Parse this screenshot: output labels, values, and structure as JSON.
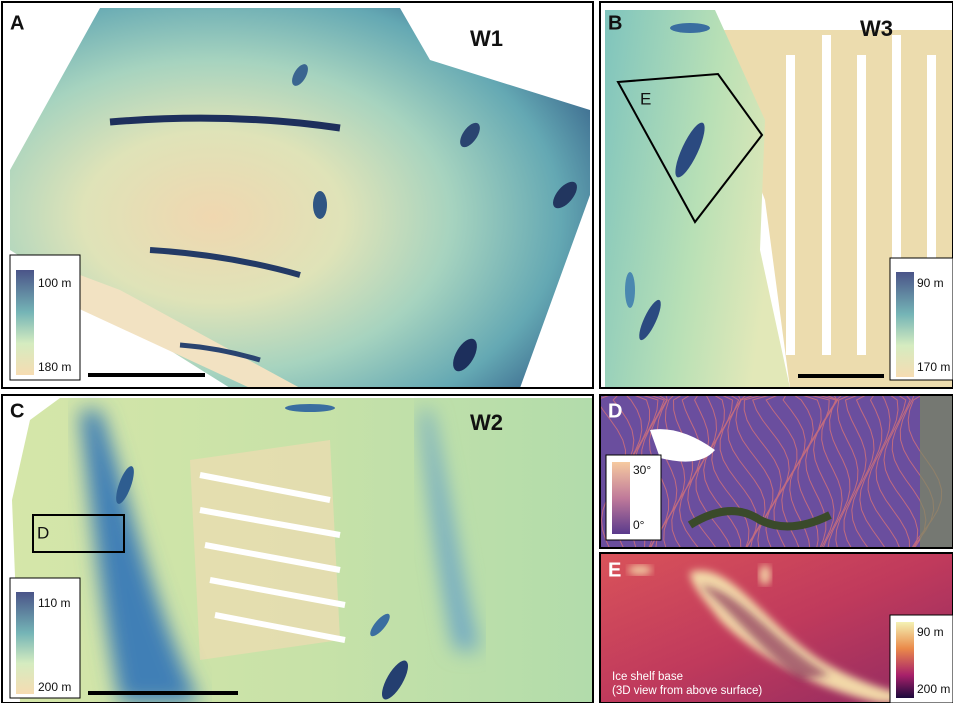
{
  "panels": [
    {
      "letter": "A",
      "site": "W1",
      "legend": {
        "top": "100 m",
        "bottom": "180 m"
      }
    },
    {
      "letter": "B",
      "site": "W3",
      "inset_label": "E",
      "legend": {
        "top": "90 m",
        "bottom": "170 m"
      }
    },
    {
      "letter": "C",
      "site": "W2",
      "inset_label": "D",
      "legend": {
        "top": "110 m",
        "bottom": "200 m"
      }
    },
    {
      "letter": "D",
      "legend": {
        "top": "30°",
        "bottom": "0°"
      }
    },
    {
      "letter": "E",
      "caption": [
        "Ice shelf base",
        "(3D view from above surface)"
      ],
      "legend": {
        "top": "90 m",
        "bottom": "200 m"
      }
    }
  ]
}
